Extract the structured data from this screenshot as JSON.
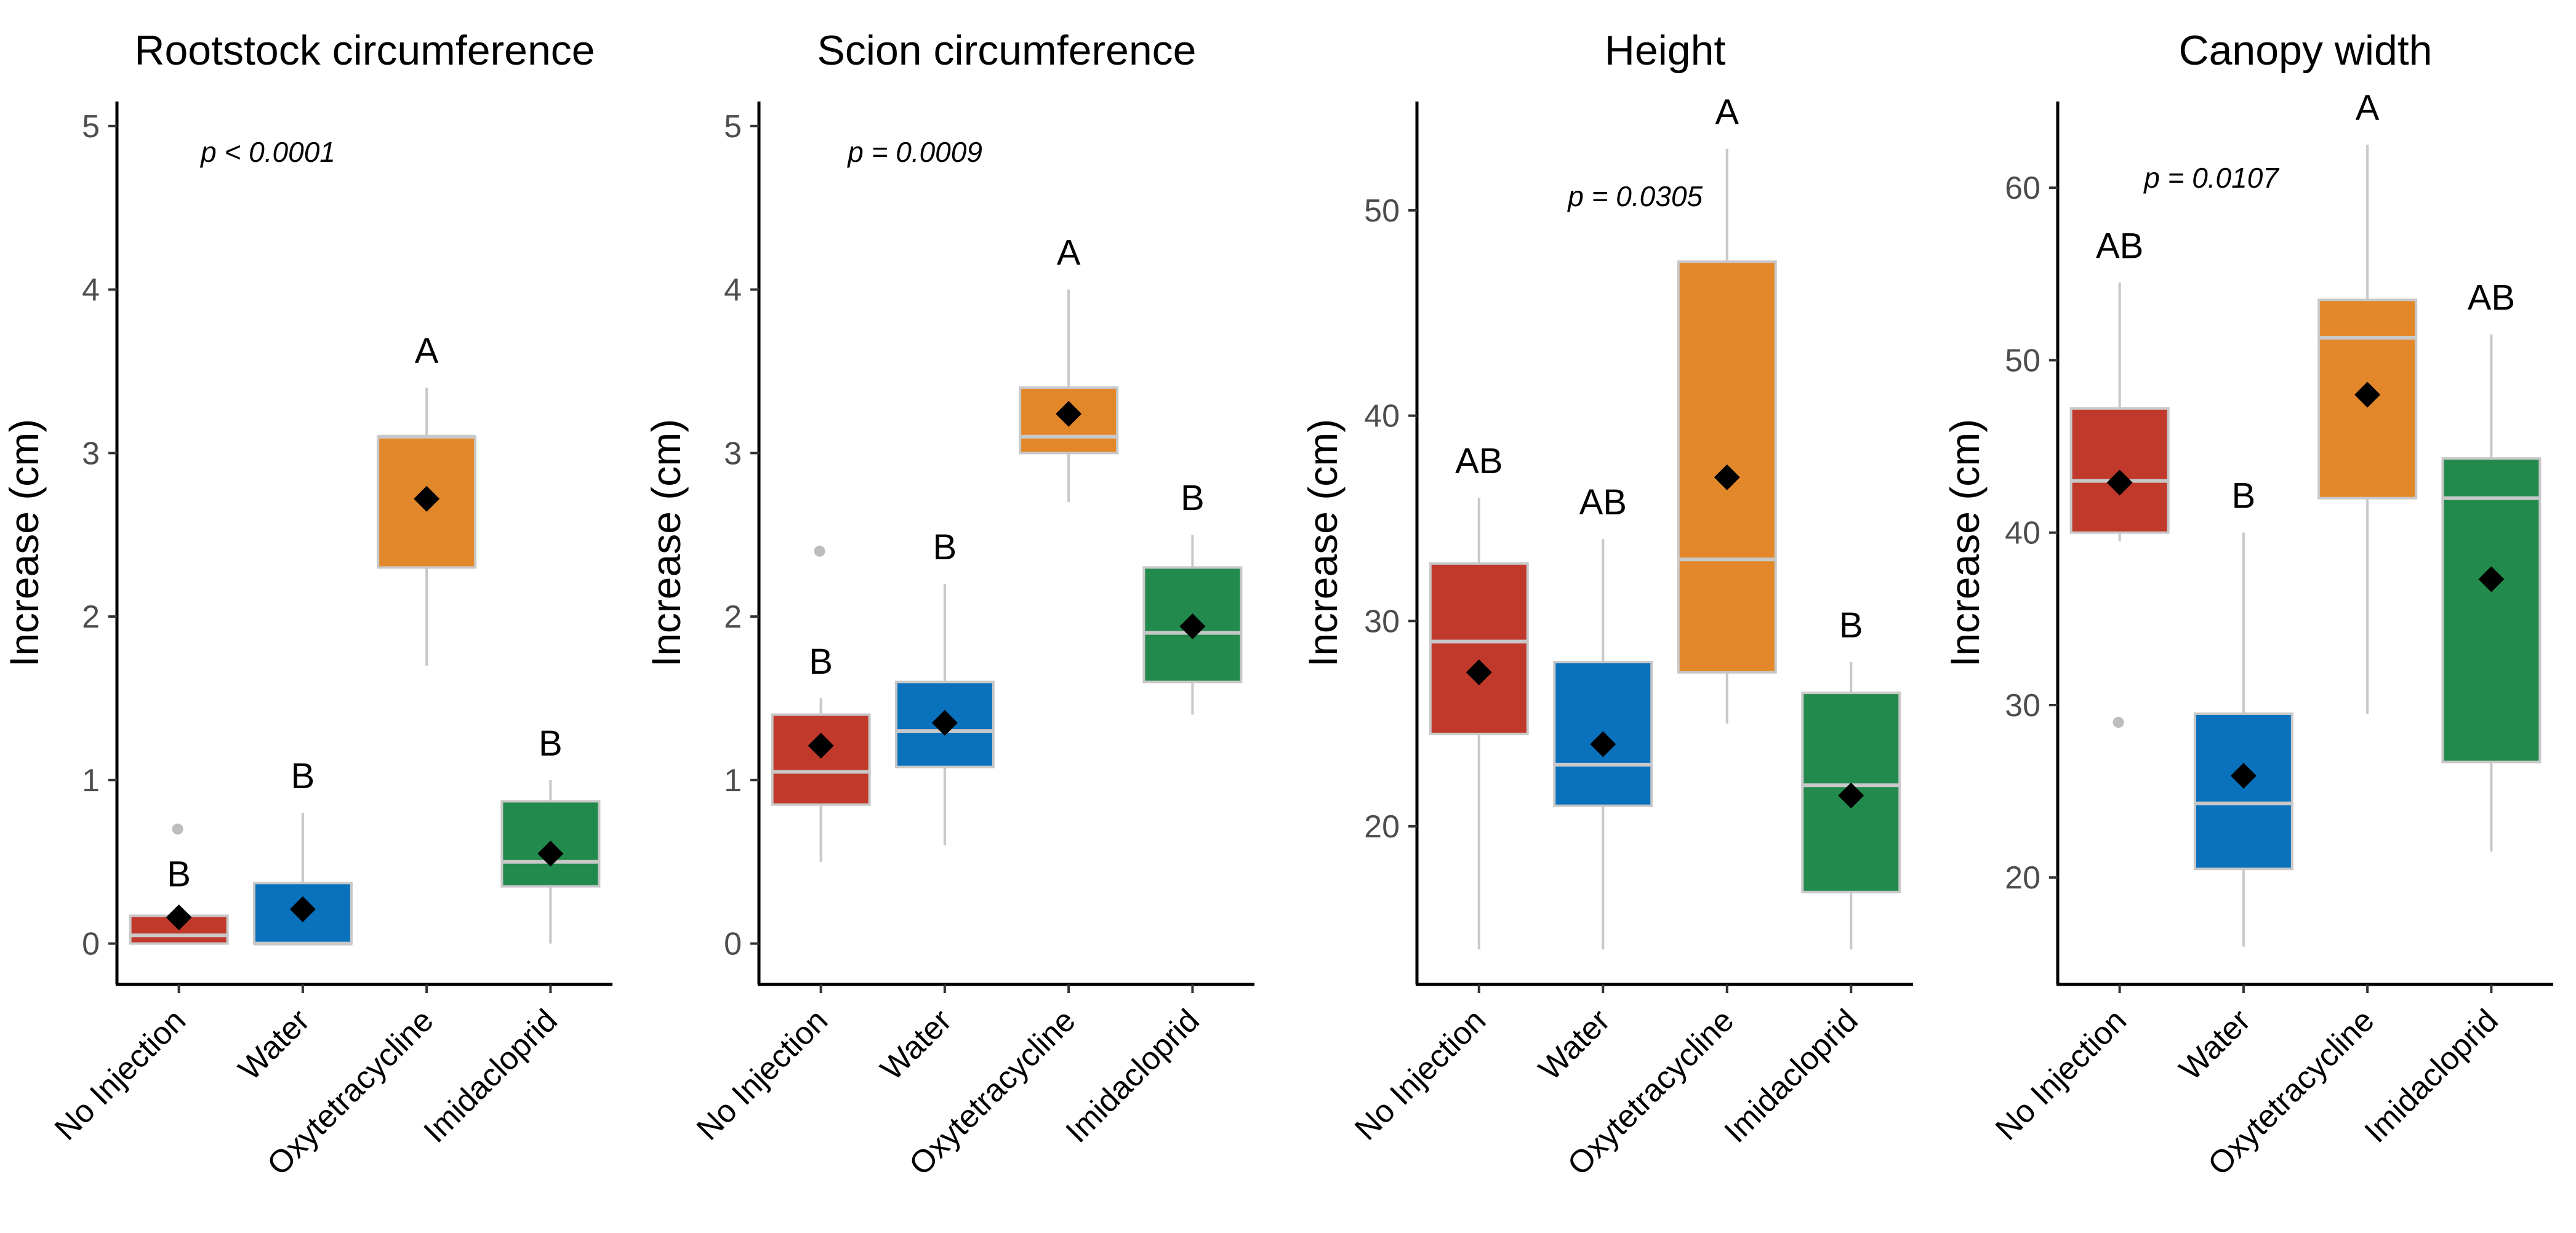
{
  "chart_data": [
    {
      "type": "box",
      "title": "Rootstock circumference",
      "ylabel": "Increase (cm)",
      "ylim": [
        -0.25,
        5.15
      ],
      "yticks": [
        0,
        1,
        2,
        3,
        4,
        5
      ],
      "pvalue": "p < 0.0001",
      "categories": [
        "No Injection",
        "Water",
        "Oxytetracycline",
        "Imidacloprid"
      ],
      "boxes": [
        {
          "category": "No Injection",
          "color": "#c0392b",
          "min": 0,
          "q1": 0.0,
          "median": 0.05,
          "q3": 0.17,
          "max": 0.2,
          "mean": 0.16,
          "outliers": [
            0.7
          ],
          "label": "B"
        },
        {
          "category": "Water",
          "color": "#0a72bd",
          "min": 0,
          "q1": 0.0,
          "median": 0.0,
          "q3": 0.37,
          "max": 0.8,
          "mean": 0.21,
          "outliers": [],
          "label": "B"
        },
        {
          "category": "Oxytetracycline",
          "color": "#e3882a",
          "min": 1.7,
          "q1": 2.3,
          "median": 3.1,
          "q3": 3.1,
          "max": 3.4,
          "mean": 2.72,
          "outliers": [],
          "label": "A"
        },
        {
          "category": "Imidacloprid",
          "color": "#228a4c",
          "min": 0,
          "q1": 0.35,
          "median": 0.5,
          "q3": 0.87,
          "max": 1.0,
          "mean": 0.55,
          "outliers": [],
          "label": "B"
        }
      ]
    },
    {
      "type": "box",
      "title": "Scion circumference",
      "ylabel": "Increase (cm)",
      "ylim": [
        -0.25,
        5.15
      ],
      "yticks": [
        0,
        1,
        2,
        3,
        4,
        5
      ],
      "pvalue": "p = 0.0009",
      "categories": [
        "No Injection",
        "Water",
        "Oxytetracycline",
        "Imidacloprid"
      ],
      "boxes": [
        {
          "category": "No Injection",
          "color": "#c0392b",
          "min": 0.5,
          "q1": 0.85,
          "median": 1.05,
          "q3": 1.4,
          "max": 1.5,
          "mean": 1.21,
          "outliers": [
            2.4
          ],
          "label": "B"
        },
        {
          "category": "Water",
          "color": "#0a72bd",
          "min": 0.6,
          "q1": 1.08,
          "median": 1.3,
          "q3": 1.6,
          "max": 2.2,
          "mean": 1.35,
          "outliers": [],
          "label": "B"
        },
        {
          "category": "Oxytetracycline",
          "color": "#e3882a",
          "min": 2.7,
          "q1": 3.0,
          "median": 3.1,
          "q3": 3.4,
          "max": 4.0,
          "mean": 3.24,
          "outliers": [],
          "label": "A"
        },
        {
          "category": "Imidacloprid",
          "color": "#228a4c",
          "min": 1.4,
          "q1": 1.6,
          "median": 1.9,
          "q3": 2.3,
          "max": 2.5,
          "mean": 1.94,
          "outliers": [],
          "label": "B"
        }
      ]
    },
    {
      "type": "box",
      "title": "Height",
      "ylabel": "Increase (cm)",
      "ylim": [
        12.3,
        55.3
      ],
      "yticks": [
        20,
        30,
        40,
        50
      ],
      "pvalue": "p = 0.0305",
      "categories": [
        "No Injection",
        "Water",
        "Oxytetracycline",
        "Imidacloprid"
      ],
      "boxes": [
        {
          "category": "No Injection",
          "color": "#c0392b",
          "min": 14,
          "q1": 24.5,
          "median": 29,
          "q3": 32.8,
          "max": 36,
          "mean": 27.5,
          "outliers": [],
          "label": "AB"
        },
        {
          "category": "Water",
          "color": "#0a72bd",
          "min": 14,
          "q1": 21,
          "median": 23,
          "q3": 28,
          "max": 34,
          "mean": 24,
          "outliers": [],
          "label": "AB"
        },
        {
          "category": "Oxytetracycline",
          "color": "#e3882a",
          "min": 25,
          "q1": 27.5,
          "median": 33,
          "q3": 47.5,
          "max": 53,
          "mean": 37,
          "outliers": [],
          "label": "A"
        },
        {
          "category": "Imidacloprid",
          "color": "#228a4c",
          "min": 14,
          "q1": 16.8,
          "median": 22,
          "q3": 26.5,
          "max": 28,
          "mean": 21.5,
          "outliers": [],
          "label": "B"
        }
      ]
    },
    {
      "type": "box",
      "title": "Canopy width",
      "ylabel": "Increase (cm)",
      "ylim": [
        13.8,
        65.0
      ],
      "yticks": [
        20,
        30,
        40,
        50,
        60
      ],
      "pvalue": "p = 0.0107",
      "categories": [
        "No Injection",
        "Water",
        "Oxytetracycline",
        "Imidacloprid"
      ],
      "boxes": [
        {
          "category": "No Injection",
          "color": "#c0392b",
          "min": 39.5,
          "q1": 40,
          "median": 43,
          "q3": 47.2,
          "max": 54.5,
          "mean": 42.9,
          "outliers": [
            29
          ],
          "label": "AB"
        },
        {
          "category": "Water",
          "color": "#0a72bd",
          "min": 16,
          "q1": 20.5,
          "median": 24.3,
          "q3": 29.5,
          "max": 40,
          "mean": 25.9,
          "outliers": [],
          "label": "B"
        },
        {
          "category": "Oxytetracycline",
          "color": "#e3882a",
          "min": 29.5,
          "q1": 42,
          "median": 51.3,
          "q3": 53.5,
          "max": 62.5,
          "mean": 48,
          "outliers": [],
          "label": "A"
        },
        {
          "category": "Imidacloprid",
          "color": "#228a4c",
          "min": 21.5,
          "q1": 26.7,
          "median": 42,
          "q3": 44.3,
          "max": 51.5,
          "mean": 37.3,
          "outliers": [],
          "label": "AB"
        }
      ]
    }
  ]
}
